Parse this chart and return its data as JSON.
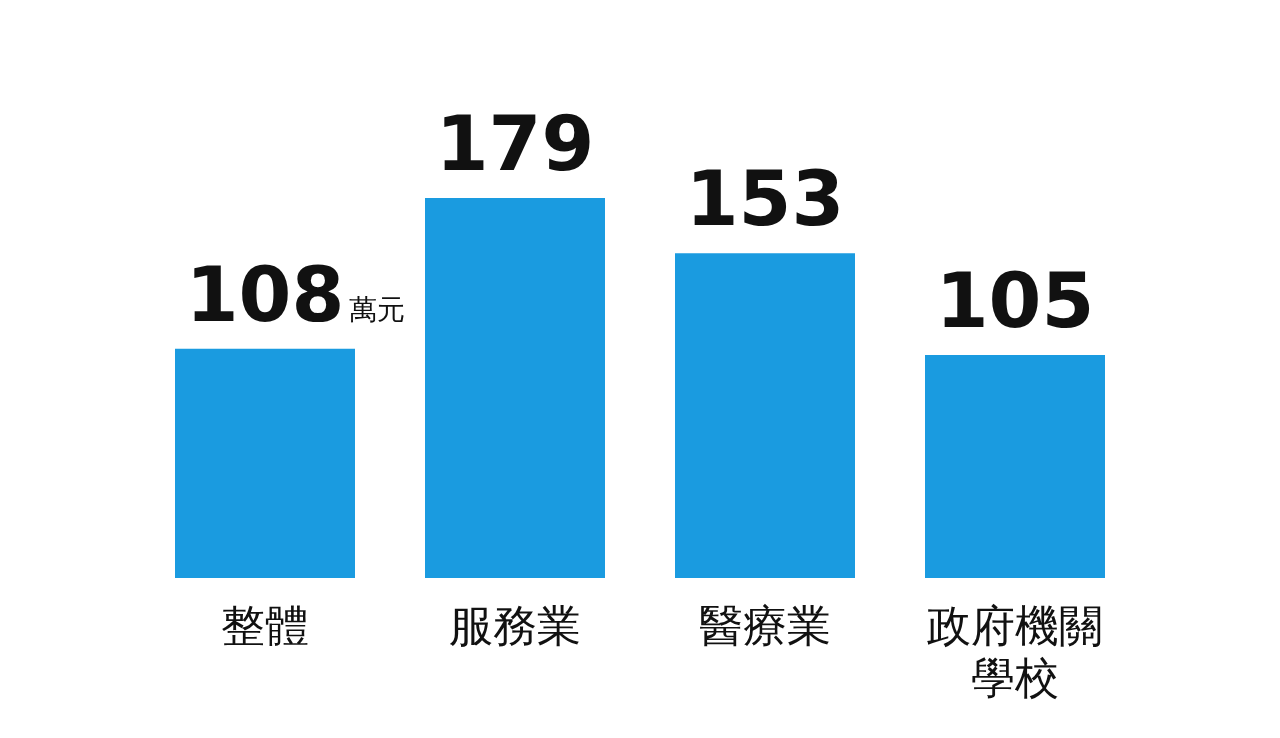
{
  "chart_data": {
    "type": "bar",
    "categories": [
      "整體",
      "服務業",
      "醫療業",
      "政府機關學校"
    ],
    "values": [
      108,
      179,
      153,
      105
    ],
    "color": "#1a9be0",
    "data_labels": true,
    "annotations": [
      "萬元"
    ]
  }
}
